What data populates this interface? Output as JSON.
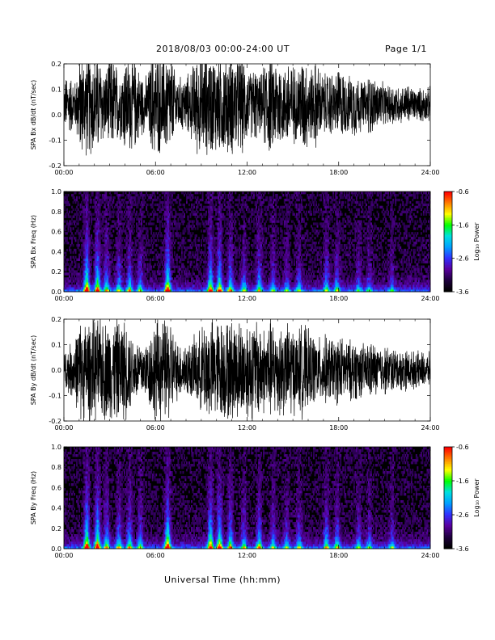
{
  "header": {
    "title": "2018/08/03  00:00-24:00 UT",
    "page": "Page 1/1"
  },
  "footer": {
    "xlabel": "Universal Time (hh:mm)"
  },
  "colors": {
    "trace": "#000000",
    "background": "#ffffff",
    "colormap": [
      "#000000",
      "#200040",
      "#5a00a0",
      "#3030ff",
      "#00a0ff",
      "#00e0e0",
      "#00ff00",
      "#ffff00",
      "#ff8000",
      "#ff0000"
    ]
  },
  "chart_data": [
    {
      "type": "line",
      "panel": "bx-timeseries",
      "ylabel": "SPA Bx dB/dt (nT/sec)",
      "ylim": [
        -0.2,
        0.2
      ],
      "yticks": [
        "0.2",
        "0.1",
        "0.0",
        "-0.1",
        "-0.2"
      ],
      "xlim": [
        "00:00",
        "24:00"
      ],
      "xticks": [
        "00:00",
        "06:00",
        "12:00",
        "18:00",
        "24:00"
      ],
      "envelope": {
        "x_hours": [
          0,
          0.25,
          0.5,
          0.75,
          1,
          1.25,
          1.5,
          1.75,
          2,
          2.25,
          2.5,
          2.75,
          3,
          3.25,
          3.5,
          3.75,
          4,
          4.25,
          4.5,
          4.75,
          5,
          5.25,
          5.5,
          5.75,
          6,
          6.25,
          6.5,
          6.75,
          7,
          7.25,
          7.5,
          7.75,
          8,
          8.25,
          8.5,
          8.75,
          9,
          9.25,
          9.5,
          9.75,
          10,
          10.25,
          10.5,
          10.75,
          11,
          11.25,
          11.5,
          11.75,
          12,
          12.25,
          12.5,
          12.75,
          13,
          13.25,
          13.5,
          13.75,
          14,
          14.25,
          14.5,
          14.75,
          15,
          15.25,
          15.5,
          15.75,
          16,
          16.25,
          16.5,
          16.75,
          17,
          17.25,
          17.5,
          17.75,
          18,
          18.25,
          18.5,
          18.75,
          19,
          19.25,
          19.5,
          19.75,
          20,
          20.25,
          20.5,
          20.75,
          21,
          21.25,
          21.5,
          21.75,
          22,
          22.25,
          22.5,
          22.75,
          23,
          23.25,
          23.5,
          23.75,
          24
        ],
        "amplitude": [
          0.1,
          0.14,
          0.12,
          0.1,
          0.22,
          0.22,
          0.22,
          0.22,
          0.22,
          0.22,
          0.18,
          0.15,
          0.22,
          0.2,
          0.17,
          0.15,
          0.22,
          0.2,
          0.22,
          0.18,
          0.15,
          0.12,
          0.13,
          0.22,
          0.22,
          0.22,
          0.22,
          0.22,
          0.22,
          0.15,
          0.12,
          0.12,
          0.13,
          0.14,
          0.18,
          0.22,
          0.22,
          0.22,
          0.22,
          0.22,
          0.22,
          0.22,
          0.22,
          0.22,
          0.22,
          0.22,
          0.22,
          0.22,
          0.16,
          0.14,
          0.18,
          0.12,
          0.14,
          0.22,
          0.22,
          0.2,
          0.22,
          0.18,
          0.16,
          0.22,
          0.18,
          0.15,
          0.2,
          0.22,
          0.18,
          0.16,
          0.2,
          0.16,
          0.13,
          0.14,
          0.15,
          0.12,
          0.17,
          0.15,
          0.13,
          0.12,
          0.15,
          0.13,
          0.11,
          0.1,
          0.14,
          0.12,
          0.11,
          0.1,
          0.09,
          0.08,
          0.1,
          0.09,
          0.08,
          0.08,
          0.09,
          0.08,
          0.07,
          0.07,
          0.08,
          0.07,
          0.08
        ]
      },
      "offset": 0.04
    },
    {
      "type": "heatmap",
      "panel": "bx-spectrogram",
      "ylabel": "SPA Bx Freq (Hz)",
      "ylim": [
        0.0,
        1.0
      ],
      "yticks": [
        "1.0",
        "0.8",
        "0.6",
        "0.4",
        "0.2",
        "0.0"
      ],
      "xlim": [
        "00:00",
        "24:00"
      ],
      "xticks": [
        "00:00",
        "06:00",
        "12:00",
        "18:00",
        "24:00"
      ],
      "colorbar": {
        "label": "Log₁₀ Power",
        "range": [
          -3.6,
          -0.6
        ],
        "ticks": [
          "-0.6",
          "-1.6",
          "-2.6",
          "-3.6"
        ]
      },
      "bursts": {
        "center_hours": [
          1.5,
          2.2,
          2.8,
          3.6,
          4.3,
          5.0,
          6.8,
          9.6,
          10.2,
          10.9,
          11.8,
          12.8,
          13.7,
          14.6,
          15.4,
          17.2,
          17.9,
          19.3,
          20.0,
          21.5
        ],
        "strength": [
          1.0,
          0.9,
          0.55,
          0.5,
          0.55,
          0.45,
          1.0,
          0.8,
          0.8,
          0.6,
          0.45,
          0.55,
          0.4,
          0.35,
          0.4,
          0.5,
          0.45,
          0.35,
          0.3,
          0.3
        ]
      }
    },
    {
      "type": "line",
      "panel": "by-timeseries",
      "ylabel": "SPA By dB/dt (nT/sec)",
      "ylim": [
        -0.2,
        0.2
      ],
      "yticks": [
        "0.2",
        "0.1",
        "0.0",
        "-0.1",
        "-0.2"
      ],
      "xlim": [
        "00:00",
        "24:00"
      ],
      "xticks": [
        "00:00",
        "06:00",
        "12:00",
        "18:00",
        "24:00"
      ],
      "envelope": {
        "x_hours": [
          0,
          0.25,
          0.5,
          0.75,
          1,
          1.25,
          1.5,
          1.75,
          2,
          2.25,
          2.5,
          2.75,
          3,
          3.25,
          3.5,
          3.75,
          4,
          4.25,
          4.5,
          4.75,
          5,
          5.25,
          5.5,
          5.75,
          6,
          6.25,
          6.5,
          6.75,
          7,
          7.25,
          7.5,
          7.75,
          8,
          8.25,
          8.5,
          8.75,
          9,
          9.25,
          9.5,
          9.75,
          10,
          10.25,
          10.5,
          10.75,
          11,
          11.25,
          11.5,
          11.75,
          12,
          12.25,
          12.5,
          12.75,
          13,
          13.25,
          13.5,
          13.75,
          14,
          14.25,
          14.5,
          14.75,
          15,
          15.25,
          15.5,
          15.75,
          16,
          16.25,
          16.5,
          16.75,
          17,
          17.25,
          17.5,
          17.75,
          18,
          18.25,
          18.5,
          18.75,
          19,
          19.25,
          19.5,
          19.75,
          20,
          20.25,
          20.5,
          20.75,
          21,
          21.25,
          21.5,
          21.75,
          22,
          22.25,
          22.5,
          22.75,
          23,
          23.25,
          23.5,
          23.75,
          24
        ],
        "amplitude": [
          0.08,
          0.1,
          0.12,
          0.14,
          0.22,
          0.22,
          0.22,
          0.22,
          0.22,
          0.22,
          0.22,
          0.22,
          0.22,
          0.22,
          0.22,
          0.22,
          0.22,
          0.18,
          0.15,
          0.14,
          0.13,
          0.12,
          0.13,
          0.2,
          0.22,
          0.22,
          0.22,
          0.22,
          0.22,
          0.15,
          0.12,
          0.12,
          0.12,
          0.12,
          0.14,
          0.16,
          0.18,
          0.22,
          0.22,
          0.22,
          0.22,
          0.22,
          0.22,
          0.22,
          0.22,
          0.22,
          0.22,
          0.22,
          0.22,
          0.22,
          0.22,
          0.22,
          0.2,
          0.18,
          0.22,
          0.22,
          0.2,
          0.22,
          0.18,
          0.22,
          0.2,
          0.16,
          0.2,
          0.2,
          0.17,
          0.16,
          0.15,
          0.14,
          0.16,
          0.14,
          0.15,
          0.13,
          0.16,
          0.14,
          0.13,
          0.13,
          0.14,
          0.12,
          0.12,
          0.11,
          0.13,
          0.12,
          0.11,
          0.1,
          0.11,
          0.1,
          0.1,
          0.09,
          0.09,
          0.09,
          0.09,
          0.08,
          0.08,
          0.08,
          0.08,
          0.07,
          0.08
        ]
      },
      "offset": 0.0
    },
    {
      "type": "heatmap",
      "panel": "by-spectrogram",
      "ylabel": "SPA By Freq (Hz)",
      "ylim": [
        0.0,
        1.0
      ],
      "yticks": [
        "1.0",
        "0.8",
        "0.6",
        "0.4",
        "0.2",
        "0.0"
      ],
      "xlim": [
        "00:00",
        "24:00"
      ],
      "xticks": [
        "00:00",
        "06:00",
        "12:00",
        "18:00",
        "24:00"
      ],
      "colorbar": {
        "label": "Log₁₀ Power",
        "range": [
          -3.6,
          -0.6
        ],
        "ticks": [
          "-0.6",
          "-1.6",
          "-2.6",
          "-3.6"
        ]
      },
      "bursts": {
        "center_hours": [
          1.5,
          2.2,
          2.8,
          3.6,
          4.3,
          5.0,
          6.8,
          9.6,
          10.2,
          10.9,
          11.8,
          12.8,
          13.7,
          14.6,
          15.4,
          17.2,
          17.9,
          19.3,
          20.0,
          21.5
        ],
        "strength": [
          1.0,
          1.0,
          0.6,
          0.55,
          0.6,
          0.5,
          1.0,
          0.9,
          0.85,
          0.65,
          0.5,
          0.6,
          0.45,
          0.4,
          0.45,
          0.55,
          0.5,
          0.4,
          0.35,
          0.35
        ]
      }
    }
  ]
}
